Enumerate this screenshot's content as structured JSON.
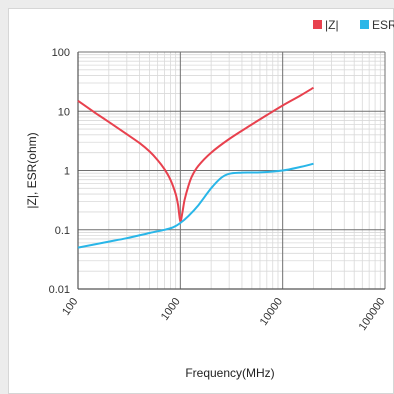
{
  "chart_data": {
    "type": "line",
    "xscale": "log",
    "yscale": "log",
    "xlim": [
      100,
      100000
    ],
    "ylim": [
      0.01,
      100
    ],
    "xlabel": "Frequency(MHz)",
    "ylabel": "|Z|, ESR(ohm)",
    "xticks": [
      "100",
      "1000",
      "10000",
      "100000"
    ],
    "yticks": [
      "100",
      "10",
      "1",
      "0.1",
      "0.01"
    ],
    "grid": true,
    "legend": "top-right",
    "series": [
      {
        "name": "|Z|",
        "color": "#e8414e",
        "x": [
          100,
          150,
          200,
          300,
          400,
          500,
          600,
          700,
          800,
          900,
          950,
          1000,
          1050,
          1100,
          1200,
          1300,
          1500,
          2000,
          3000,
          5000,
          7000,
          10000,
          15000,
          20000
        ],
        "y": [
          15,
          9.2,
          6.6,
          4.1,
          2.9,
          2.1,
          1.5,
          1.05,
          0.7,
          0.4,
          0.26,
          0.14,
          0.2,
          0.32,
          0.55,
          0.8,
          1.2,
          2.0,
          3.4,
          6.0,
          8.6,
          12.5,
          18.5,
          25
        ]
      },
      {
        "name": "ESR",
        "color": "#29b6e8",
        "x": [
          100,
          200,
          300,
          500,
          700,
          850,
          1000,
          1200,
          1500,
          2000,
          2500,
          3000,
          4000,
          6000,
          10000,
          15000,
          20000
        ],
        "y": [
          0.05,
          0.063,
          0.072,
          0.088,
          0.1,
          0.11,
          0.13,
          0.17,
          0.26,
          0.5,
          0.75,
          0.88,
          0.92,
          0.93,
          1.0,
          1.15,
          1.3
        ]
      }
    ]
  }
}
